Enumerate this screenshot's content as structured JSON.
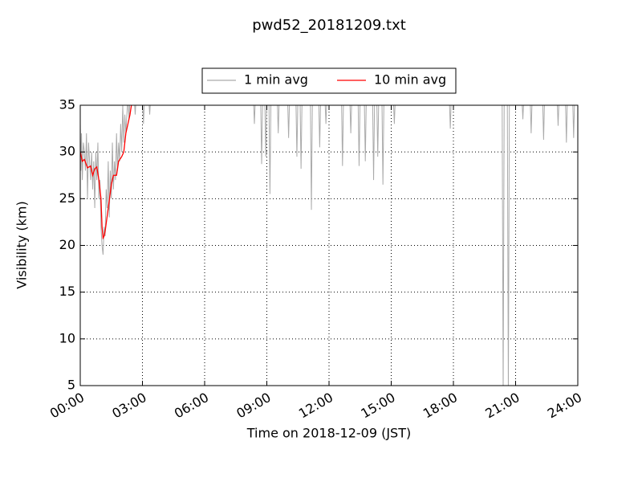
{
  "chart_data": {
    "type": "line",
    "title": "pwd52_20181209.txt",
    "xlabel": "Time on 2018-12-09 (JST)",
    "ylabel": "Visibility (km)",
    "xlim": [
      0,
      24
    ],
    "ylim": [
      5,
      35
    ],
    "xticks": [
      {
        "value": 0,
        "label": "00:00"
      },
      {
        "value": 3,
        "label": "03:00"
      },
      {
        "value": 6,
        "label": "06:00"
      },
      {
        "value": 9,
        "label": "09:00"
      },
      {
        "value": 12,
        "label": "12:00"
      },
      {
        "value": 15,
        "label": "15:00"
      },
      {
        "value": 18,
        "label": "18:00"
      },
      {
        "value": 21,
        "label": "21:00"
      },
      {
        "value": 24,
        "label": "24:00"
      }
    ],
    "yticks": [
      5,
      10,
      15,
      20,
      25,
      30,
      35
    ],
    "grid": true,
    "legend": "upper center",
    "series": [
      {
        "name": "1 min avg",
        "color": "#aaaaaa",
        "x": [
          0.0,
          0.03,
          0.06,
          0.1,
          0.15,
          0.2,
          0.25,
          0.3,
          0.35,
          0.4,
          0.45,
          0.5,
          0.55,
          0.6,
          0.65,
          0.7,
          0.75,
          0.8,
          0.85,
          0.9,
          0.95,
          1.0,
          1.05,
          1.1,
          1.15,
          1.2,
          1.25,
          1.3,
          1.35,
          1.4,
          1.45,
          1.5,
          1.55,
          1.6,
          1.65,
          1.7,
          1.75,
          1.8,
          1.85,
          1.9,
          1.95,
          2.0,
          2.05,
          2.1,
          2.15,
          2.2,
          2.3,
          2.35,
          2.4,
          2.6,
          2.65,
          2.7,
          3.0,
          3.05,
          3.1,
          3.3,
          3.35,
          3.4,
          8.35,
          8.4,
          8.45,
          8.7,
          8.75,
          8.8,
          8.9,
          8.95,
          9.0,
          9.1,
          9.15,
          9.2,
          9.5,
          9.55,
          9.6,
          10.0,
          10.05,
          10.1,
          10.4,
          10.45,
          10.5,
          10.6,
          10.65,
          10.7,
          11.1,
          11.15,
          11.2,
          11.5,
          11.55,
          11.6,
          11.8,
          11.85,
          11.9,
          12.6,
          12.65,
          12.7,
          13.0,
          13.05,
          13.1,
          13.4,
          13.45,
          13.5,
          13.7,
          13.75,
          13.8,
          14.1,
          14.15,
          14.2,
          14.3,
          14.35,
          14.4,
          14.55,
          14.6,
          14.65,
          15.1,
          15.15,
          15.2,
          17.8,
          17.85,
          17.9,
          20.35,
          20.4,
          20.45,
          20.6,
          20.65,
          20.7,
          21.3,
          21.35,
          21.4,
          21.7,
          21.75,
          21.8,
          22.3,
          22.35,
          22.4,
          23.0,
          23.05,
          23.1,
          23.4,
          23.45,
          23.5,
          23.75,
          23.8,
          23.85,
          24.0
        ],
        "values": [
          33,
          28,
          32,
          27,
          31,
          30,
          28,
          32,
          25,
          31,
          29,
          27,
          30,
          26,
          29,
          24,
          30,
          27,
          31,
          25,
          27,
          22,
          20,
          19,
          22,
          21,
          26,
          24,
          29,
          23,
          28,
          25,
          31,
          26,
          29,
          27,
          32,
          28,
          31,
          29,
          33,
          30,
          35,
          31,
          34,
          32,
          36,
          33.5,
          36,
          36,
          34,
          36,
          36,
          33,
          36,
          36,
          34,
          36,
          36,
          33,
          36,
          36,
          28.7,
          36,
          36,
          29.5,
          36,
          36,
          25.5,
          36,
          36,
          32,
          36,
          36,
          31.5,
          36,
          36,
          29.5,
          36,
          36,
          28.2,
          36,
          36,
          23.8,
          36,
          36,
          30.5,
          36,
          36,
          33,
          36,
          36,
          28.5,
          36,
          36,
          32,
          36,
          36,
          28.5,
          36,
          36,
          29,
          36,
          36,
          27,
          36,
          36,
          29.5,
          36,
          36,
          26.5,
          36,
          36,
          33,
          36,
          36,
          32.5,
          36,
          36,
          4,
          36,
          36,
          4,
          36,
          36,
          33.5,
          36,
          36,
          32,
          36,
          36,
          31.3,
          36,
          36,
          32.8,
          36,
          36,
          31,
          36,
          36,
          31.5,
          36,
          36
        ]
      },
      {
        "name": "10 min avg",
        "color": "#ff0000",
        "x": [
          0.0,
          0.1,
          0.2,
          0.35,
          0.5,
          0.6,
          0.7,
          0.8,
          0.9,
          1.0,
          1.05,
          1.1,
          1.15,
          1.2,
          1.35,
          1.5,
          1.6,
          1.75,
          1.85,
          2.0,
          2.1,
          2.2,
          2.3,
          2.4,
          2.5
        ],
        "values": [
          30,
          29,
          29.2,
          28.3,
          28.5,
          27.5,
          28.2,
          28.4,
          27,
          25,
          22,
          20.8,
          21,
          21.5,
          24,
          26.5,
          27.5,
          27.5,
          29,
          29.5,
          30,
          32,
          33,
          34,
          35.5
        ]
      }
    ]
  }
}
